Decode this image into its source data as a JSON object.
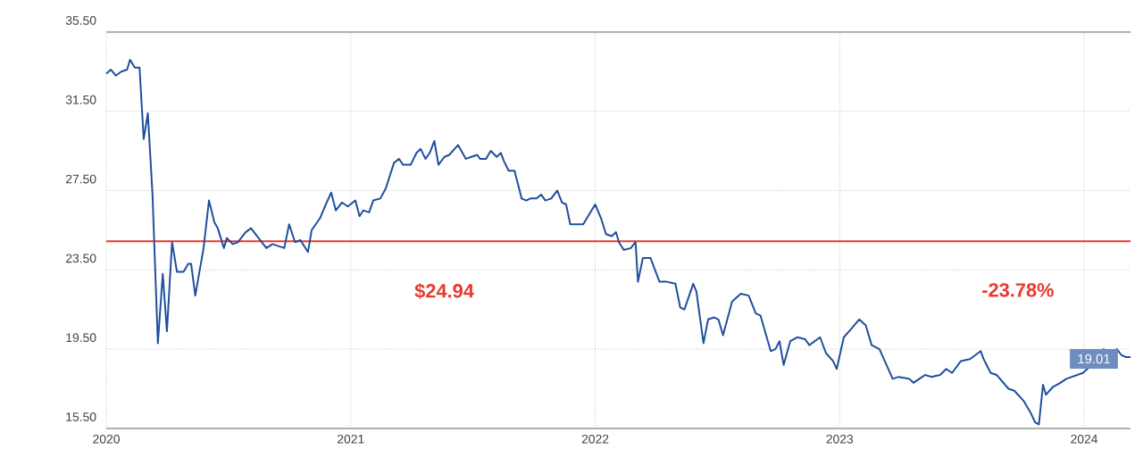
{
  "chart_data": {
    "type": "line",
    "x": [
      2020.0,
      2020.019,
      2020.039,
      2020.061,
      2020.085,
      2020.097,
      2020.117,
      2020.136,
      2020.153,
      2020.17,
      2020.189,
      2020.211,
      2020.231,
      2020.248,
      2020.269,
      2020.289,
      2020.316,
      2020.335,
      2020.347,
      2020.364,
      2020.381,
      2020.398,
      2020.42,
      2020.442,
      2020.456,
      2020.481,
      2020.493,
      2020.517,
      2020.539,
      2020.57,
      2020.592,
      2020.617,
      2020.655,
      2020.68,
      2020.704,
      2020.728,
      2020.748,
      2020.772,
      2020.794,
      2020.825,
      2020.84,
      2020.874,
      2020.898,
      2020.92,
      2020.939,
      2020.964,
      2020.988,
      2021.019,
      2021.036,
      2021.051,
      2021.075,
      2021.092,
      2021.121,
      2021.143,
      2021.177,
      2021.197,
      2021.214,
      2021.245,
      2021.269,
      2021.286,
      2021.306,
      2021.323,
      2021.342,
      2021.359,
      2021.383,
      2021.403,
      2021.439,
      2021.471,
      2021.493,
      2021.517,
      2021.529,
      2021.553,
      2021.573,
      2021.597,
      2021.614,
      2021.626,
      2021.646,
      2021.67,
      2021.699,
      2021.718,
      2021.735,
      2021.76,
      2021.779,
      2021.796,
      2021.82,
      2021.845,
      2021.864,
      2021.881,
      2021.898,
      2021.917,
      2021.951,
      2022.0,
      2022.024,
      2022.044,
      2022.068,
      2022.085,
      2022.097,
      2022.117,
      2022.146,
      2022.165,
      2022.175,
      2022.195,
      2022.226,
      2022.263,
      2022.292,
      2022.328,
      2022.348,
      2022.365,
      2022.401,
      2022.414,
      2022.443,
      2022.462,
      2022.487,
      2022.504,
      2022.523,
      2022.56,
      2022.596,
      2022.628,
      2022.657,
      2022.676,
      2022.718,
      2022.737,
      2022.754,
      2022.771,
      2022.798,
      2022.827,
      2022.859,
      2022.876,
      2022.92,
      2022.944,
      2022.973,
      2022.988,
      2023.017,
      2023.046,
      2023.08,
      2023.107,
      2023.131,
      2023.163,
      2023.217,
      2023.241,
      2023.285,
      2023.302,
      2023.326,
      2023.35,
      2023.375,
      2023.411,
      2023.436,
      2023.46,
      2023.496,
      2023.533,
      2023.577,
      2023.589,
      2023.618,
      2023.642,
      2023.691,
      2023.715,
      2023.752,
      2023.781,
      2023.8,
      2023.815,
      2023.832,
      2023.844,
      2023.873,
      2023.903,
      2023.927,
      2023.995,
      2024.032,
      2024.056,
      2024.08,
      2024.105,
      2024.134,
      2024.153,
      2024.17,
      2024.19
    ],
    "values": [
      33.4,
      33.6,
      33.3,
      33.5,
      33.6,
      34.1,
      33.7,
      33.7,
      30.1,
      31.4,
      27.3,
      19.8,
      23.3,
      20.4,
      24.9,
      23.4,
      23.4,
      23.8,
      23.8,
      22.2,
      23.4,
      24.6,
      27.0,
      25.9,
      25.6,
      24.6,
      25.1,
      24.8,
      24.9,
      25.4,
      25.6,
      25.2,
      24.6,
      24.8,
      24.7,
      24.6,
      25.8,
      24.9,
      25.0,
      24.4,
      25.5,
      26.1,
      26.8,
      27.4,
      26.5,
      26.9,
      26.7,
      27.0,
      26.2,
      26.5,
      26.4,
      27.0,
      27.1,
      27.6,
      28.9,
      29.1,
      28.8,
      28.8,
      29.4,
      29.6,
      29.1,
      29.4,
      30.0,
      28.8,
      29.2,
      29.3,
      29.8,
      29.1,
      29.2,
      29.3,
      29.1,
      29.1,
      29.5,
      29.2,
      29.4,
      29.0,
      28.5,
      28.5,
      27.1,
      27.0,
      27.1,
      27.1,
      27.3,
      27.0,
      27.1,
      27.5,
      26.9,
      26.8,
      25.8,
      25.8,
      25.8,
      26.8,
      26.1,
      25.3,
      25.2,
      25.4,
      24.9,
      24.5,
      24.6,
      24.9,
      22.9,
      24.1,
      24.1,
      22.9,
      22.9,
      22.8,
      21.6,
      21.5,
      22.8,
      22.4,
      19.8,
      21.0,
      21.1,
      21.0,
      20.2,
      21.9,
      22.3,
      22.2,
      21.3,
      21.2,
      19.4,
      19.5,
      19.9,
      18.7,
      19.9,
      20.1,
      20.0,
      19.7,
      20.1,
      19.3,
      18.9,
      18.5,
      20.1,
      20.5,
      21.0,
      20.7,
      19.7,
      19.5,
      18.0,
      18.1,
      18.0,
      17.8,
      18.0,
      18.2,
      18.1,
      18.2,
      18.5,
      18.3,
      18.9,
      19.0,
      19.4,
      19.0,
      18.3,
      18.2,
      17.5,
      17.4,
      16.9,
      16.3,
      15.8,
      15.7,
      17.7,
      17.2,
      17.6,
      17.8,
      18.0,
      18.3,
      18.7,
      19.0,
      19.5,
      19.3,
      19.5,
      19.2,
      19.1,
      19.1
    ],
    "color": "#1f4e9c",
    "xlim": [
      2020,
      2024.19
    ],
    "xticks": [
      2020,
      2021,
      2022,
      2023,
      2024
    ],
    "ylim": [
      15.5,
      35.5
    ],
    "yticks": [
      {
        "value": 15.5,
        "label": "15.50"
      },
      {
        "value": 19.5,
        "label": "19.50"
      },
      {
        "value": 23.5,
        "label": "23.50"
      },
      {
        "value": 27.5,
        "label": "27.50"
      },
      {
        "value": 31.5,
        "label": "31.50"
      },
      {
        "value": 35.5,
        "label": "35.50"
      }
    ],
    "grid": true,
    "ref_lines": [
      {
        "axis": "y",
        "value": 24.94,
        "label": "$24.94",
        "color": "#e8392b"
      }
    ],
    "annotations": [
      "-23.78%",
      {
        "text": "19.01",
        "x": 2024.04,
        "y": 19.01
      }
    ]
  }
}
